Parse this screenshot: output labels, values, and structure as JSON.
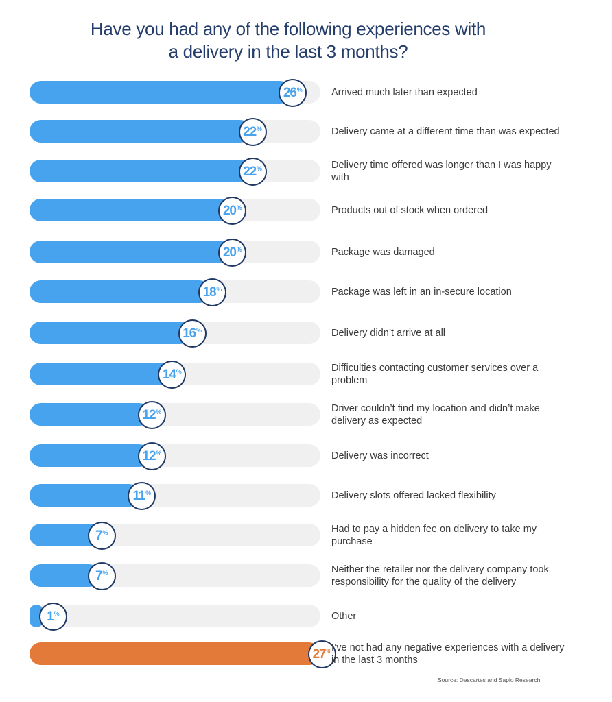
{
  "title_line1": "Have you had any of the following experiences with",
  "title_line2": "a delivery in the last 3 months?",
  "source": "Source: Descartes and Sapio Research",
  "colors": {
    "primary": "#48a3ee",
    "highlight": "#e47a3a",
    "track": "#f0f0f0",
    "badge_border": "#1f3864"
  },
  "chart_data": {
    "type": "bar",
    "orientation": "horizontal",
    "unit": "%",
    "xlim": [
      0,
      27
    ],
    "categories": [
      "Arrived much later than expected",
      "Delivery came at a different time than was expected",
      "Delivery time offered was longer than I was happy with",
      "Products out of stock when ordered",
      "Package was damaged",
      "Package was left in an in-secure location",
      "Delivery didn’t arrive at all",
      "Difficulties contacting customer services over a problem",
      "Driver couldn’t find my location and didn’t make delivery as expected",
      "Delivery was incorrect",
      "Delivery slots offered lacked flexibility",
      "Had to pay a hidden fee on delivery to take my purchase",
      "Neither the retailer nor the delivery company took responsibility for the quality of the delivery",
      "Other",
      "I’ve not had any negative experiences with a delivery in the last 3 months"
    ],
    "values": [
      26,
      22,
      22,
      20,
      20,
      18,
      16,
      14,
      12,
      12,
      11,
      7,
      7,
      1,
      27
    ],
    "highlight_index": 14
  }
}
